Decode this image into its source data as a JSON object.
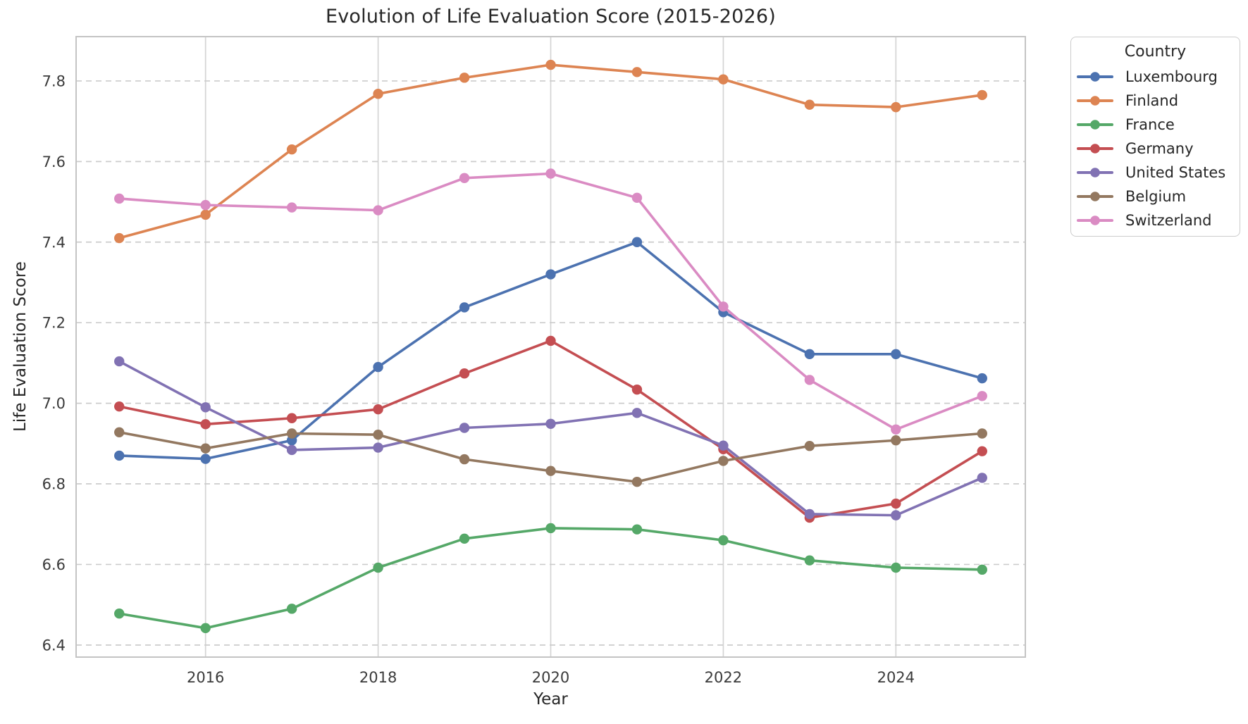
{
  "chart_data": {
    "type": "line",
    "title": "Evolution of Life Evaluation Score (2015-2026)",
    "xlabel": "Year",
    "ylabel": "Life Evaluation Score",
    "legend_title": "Country",
    "legend_position": "outside upper right",
    "grid": {
      "horizontal": "dashed",
      "vertical": "solid",
      "on": true
    },
    "x": [
      2015,
      2016,
      2017,
      2018,
      2019,
      2020,
      2021,
      2022,
      2023,
      2024,
      2025
    ],
    "xticks": [
      2016,
      2018,
      2020,
      2022,
      2024
    ],
    "yticks": [
      6.4,
      6.6,
      6.8,
      7.0,
      7.2,
      7.4,
      7.6,
      7.8
    ],
    "xlim": [
      2014.5,
      2025.5
    ],
    "ylim": [
      6.37,
      7.91
    ],
    "series": [
      {
        "name": "Luxembourg",
        "color": "#4C72B0",
        "values": [
          6.87,
          6.862,
          6.908,
          7.09,
          7.238,
          7.32,
          7.4,
          7.226,
          7.122,
          7.122,
          7.062
        ]
      },
      {
        "name": "Finland",
        "color": "#DD8452",
        "values": [
          7.41,
          7.468,
          7.63,
          7.768,
          7.808,
          7.84,
          7.822,
          7.804,
          7.741,
          7.735,
          7.765
        ]
      },
      {
        "name": "France",
        "color": "#55A868",
        "values": [
          6.478,
          6.442,
          6.49,
          6.592,
          6.664,
          6.69,
          6.687,
          6.66,
          6.61,
          6.592,
          6.587
        ]
      },
      {
        "name": "Germany",
        "color": "#C44E52",
        "values": [
          6.992,
          6.948,
          6.963,
          6.985,
          7.074,
          7.155,
          7.034,
          6.886,
          6.716,
          6.751,
          6.881
        ]
      },
      {
        "name": "United States",
        "color": "#8172B3",
        "values": [
          7.104,
          6.99,
          6.884,
          6.89,
          6.939,
          6.949,
          6.976,
          6.895,
          6.725,
          6.722,
          6.815
        ]
      },
      {
        "name": "Belgium",
        "color": "#937860",
        "values": [
          6.928,
          6.888,
          6.925,
          6.922,
          6.861,
          6.832,
          6.805,
          6.857,
          6.894,
          6.908,
          6.925
        ]
      },
      {
        "name": "Switzerland",
        "color": "#DA8BC3",
        "values": [
          7.508,
          7.492,
          7.486,
          7.479,
          7.559,
          7.57,
          7.51,
          7.24,
          7.058,
          6.935,
          7.018
        ]
      }
    ]
  },
  "style": {
    "border_color": "#c4c4c4",
    "vgrid_color": "#d4d4d4",
    "hgrid_color": "#cccccc",
    "tick_label_color": "#3a3a3a",
    "text_color": "#262626",
    "background": "#ffffff"
  }
}
